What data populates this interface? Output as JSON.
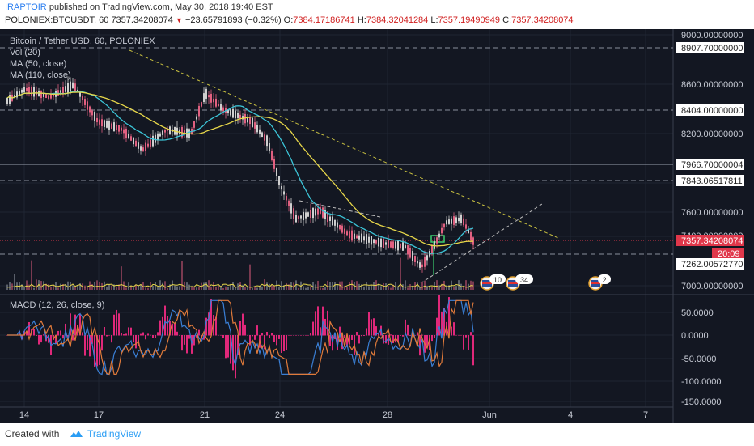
{
  "header": {
    "author": "IRAPTOIR",
    "published_text": "published on TradingView.com, May 30, 2018 19:40 EST",
    "symbol_line_prefix": "POLONIEX:BTCUSDT, 60",
    "last_price": "7357.34208074",
    "change_arrow": "▼",
    "change": "−23.65791893 (−0.32%)",
    "o_label": "O:",
    "open": "7384.17186741",
    "h_label": "H:",
    "high": "7384.32041284",
    "l_label": "L:",
    "low": "7357.19490949",
    "c_label": "C:",
    "close": "7357.34208074"
  },
  "legend": {
    "title": "Bitcoin / Tether USD, 60, POLONIEX",
    "vol": "Vol (20)",
    "ma50": "MA (50, close)",
    "ma110": "MA (110, close)",
    "macd": "MACD (12, 26, close, 9)"
  },
  "price_axis": {
    "ticks": [
      "9000.00000000",
      "8600.00000000",
      "8200.00000000",
      "7600.00000000",
      "7400.00000000",
      "7000.00000000"
    ],
    "boxed_labels": [
      "8907.70000000",
      "8404.00000000",
      "7966.70000004",
      "7843.06517811",
      "7262.00572770"
    ],
    "current_price": "7357.34208074",
    "countdown": "20:09",
    "colors": {
      "current": "#e0374a",
      "box_bg": "#ffffff",
      "box_text": "#222222"
    }
  },
  "macd_axis": {
    "ticks": [
      "50.0000",
      "0.0000",
      "-50.0000",
      "-100.0000",
      "-150.0000"
    ]
  },
  "time_axis": {
    "labels": [
      "14",
      "17",
      "21",
      "24",
      "28",
      "Jun",
      "4",
      "7"
    ]
  },
  "event_badges": [
    "10",
    "34",
    "2"
  ],
  "footer": {
    "created_with": "Created with",
    "brand": "TradingView"
  },
  "colors": {
    "background": "#131722",
    "candle_up": "#cfcfcf",
    "candle_down": "#e06080",
    "ma50": "#3cc5d8",
    "ma110": "#e8d84a",
    "macd_line": "#3a7fd5",
    "signal_line": "#e07a3a",
    "histogram": "#e0287a",
    "accent": "#2a9df4"
  },
  "icons": {
    "price_arrow": "triangle-down-icon",
    "brand_logo": "tradingview-cloud-icon",
    "event": "us-flag-icon"
  }
}
